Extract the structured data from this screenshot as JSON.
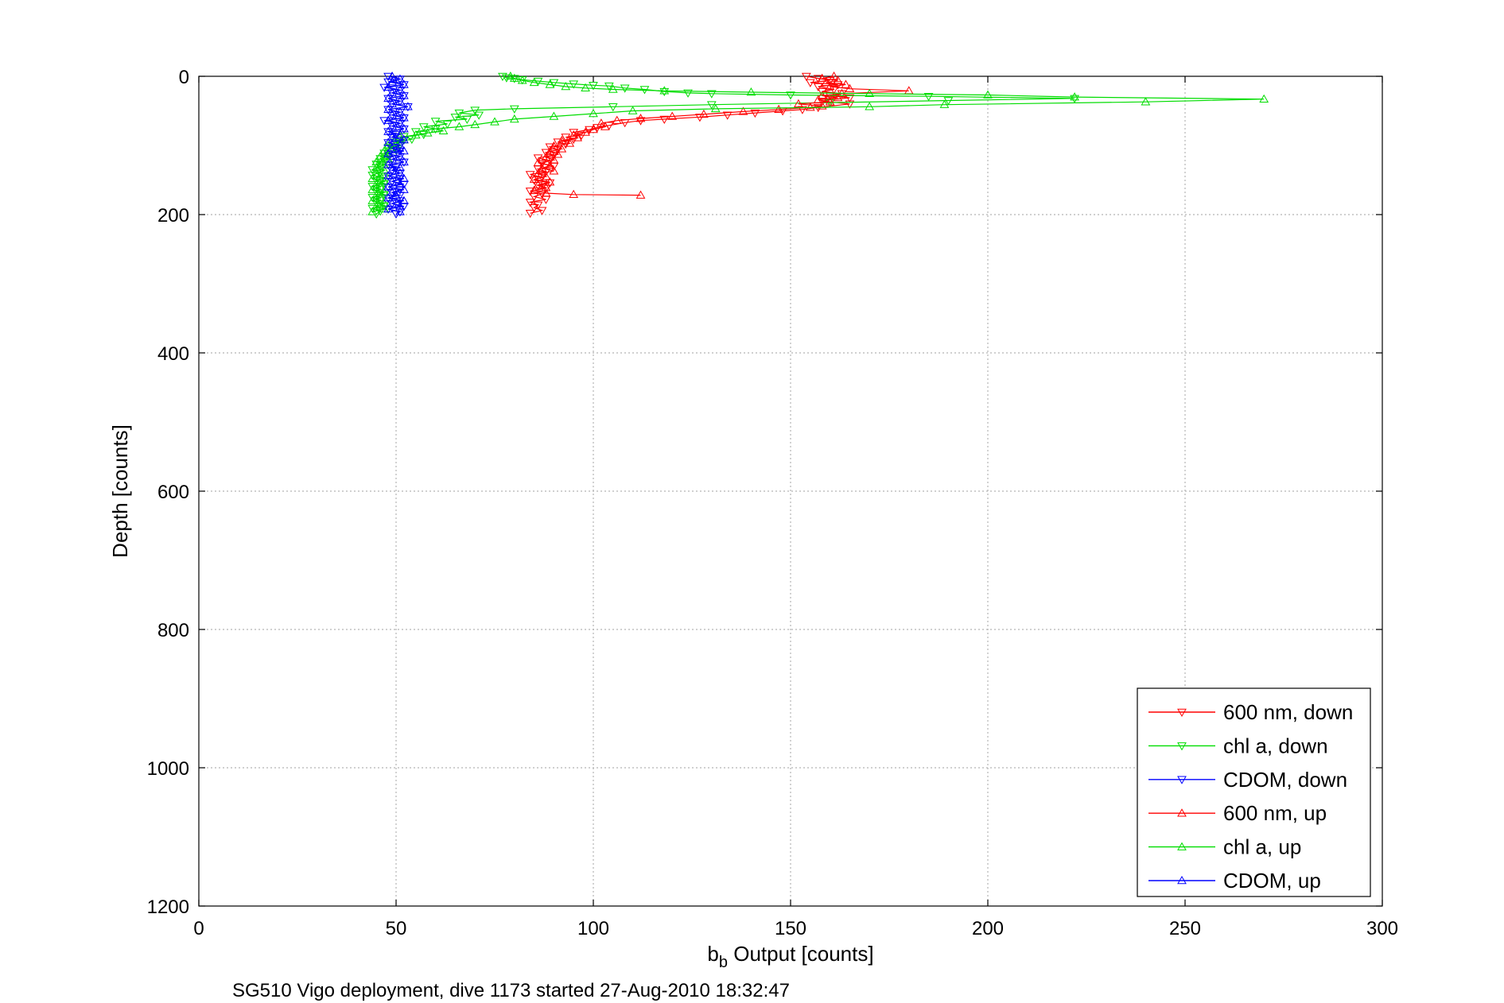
{
  "chart_data": {
    "type": "line",
    "xlabel_base": "b",
    "xlabel_sub": "b",
    "xlabel_rest": " Output [counts]",
    "ylabel": "Depth [counts]",
    "footer": "SG510 Vigo deployment, dive 1173 started 27-Aug-2010 18:32:47",
    "xlim": [
      0,
      300
    ],
    "ylim": [
      0,
      1200
    ],
    "y_reversed": true,
    "grid": true,
    "xticks": [
      "0",
      "50",
      "100",
      "150",
      "200",
      "250",
      "300"
    ],
    "yticks": [
      "0",
      "200",
      "400",
      "600",
      "800",
      "1000",
      "1200"
    ],
    "legend_position": "bottom-right",
    "series": [
      {
        "name": "600 nm, down",
        "color": "#ff0000",
        "marker": "triangle-down",
        "points": [
          [
            154,
            0
          ],
          [
            157,
            3
          ],
          [
            160,
            6
          ],
          [
            155,
            9
          ],
          [
            162,
            12
          ],
          [
            157,
            15
          ],
          [
            161,
            19
          ],
          [
            158,
            22
          ],
          [
            163,
            25
          ],
          [
            160,
            28
          ],
          [
            165,
            31
          ],
          [
            160,
            34
          ],
          [
            158,
            36
          ],
          [
            165,
            40
          ],
          [
            157,
            45
          ],
          [
            153,
            48
          ],
          [
            148,
            50
          ],
          [
            141,
            53
          ],
          [
            134,
            56
          ],
          [
            127,
            59
          ],
          [
            118,
            62
          ],
          [
            112,
            64
          ],
          [
            108,
            67
          ],
          [
            104,
            71
          ],
          [
            101,
            74
          ],
          [
            99,
            77
          ],
          [
            95,
            81
          ],
          [
            97,
            85
          ],
          [
            93,
            88
          ],
          [
            95,
            91
          ],
          [
            91,
            95
          ],
          [
            93,
            98
          ],
          [
            89,
            102
          ],
          [
            91,
            106
          ],
          [
            88,
            110
          ],
          [
            90,
            114
          ],
          [
            86,
            118
          ],
          [
            89,
            122
          ],
          [
            87,
            126
          ],
          [
            90,
            130
          ],
          [
            86,
            134
          ],
          [
            88,
            138
          ],
          [
            84,
            142
          ],
          [
            87,
            146
          ],
          [
            85,
            150
          ],
          [
            89,
            154
          ],
          [
            86,
            158
          ],
          [
            88,
            162
          ],
          [
            84,
            166
          ],
          [
            87,
            170
          ],
          [
            85,
            174
          ],
          [
            88,
            178
          ],
          [
            84,
            182
          ],
          [
            86,
            186
          ],
          [
            85,
            190
          ],
          [
            87,
            194
          ],
          [
            84,
            198
          ]
        ]
      },
      {
        "name": "chl a, down",
        "color": "#00dd00",
        "marker": "triangle-down",
        "points": [
          [
            77,
            0
          ],
          [
            78,
            2
          ],
          [
            80,
            3
          ],
          [
            82,
            5
          ],
          [
            86,
            7
          ],
          [
            90,
            9
          ],
          [
            95,
            11
          ],
          [
            100,
            13
          ],
          [
            104,
            14
          ],
          [
            108,
            17
          ],
          [
            113,
            19
          ],
          [
            118,
            22
          ],
          [
            124,
            24
          ],
          [
            130,
            25
          ],
          [
            150,
            27
          ],
          [
            185,
            29
          ],
          [
            222,
            32
          ],
          [
            190,
            35
          ],
          [
            160,
            38
          ],
          [
            130,
            41
          ],
          [
            105,
            44
          ],
          [
            80,
            47
          ],
          [
            70,
            49
          ],
          [
            66,
            53
          ],
          [
            71,
            56
          ],
          [
            65,
            59
          ],
          [
            68,
            62
          ],
          [
            60,
            65
          ],
          [
            63,
            69
          ],
          [
            57,
            73
          ],
          [
            60,
            76
          ],
          [
            55,
            80
          ],
          [
            57,
            84
          ],
          [
            52,
            87
          ],
          [
            54,
            91
          ],
          [
            50,
            95
          ],
          [
            51,
            99
          ],
          [
            48,
            103
          ],
          [
            50,
            107
          ],
          [
            47,
            111
          ],
          [
            48,
            115
          ],
          [
            46,
            119
          ],
          [
            47,
            123
          ],
          [
            45,
            127
          ],
          [
            46,
            131
          ],
          [
            44,
            135
          ],
          [
            46,
            139
          ],
          [
            44,
            143
          ],
          [
            47,
            147
          ],
          [
            45,
            151
          ],
          [
            47,
            155
          ],
          [
            44,
            159
          ],
          [
            46,
            163
          ],
          [
            45,
            167
          ],
          [
            47,
            171
          ],
          [
            44,
            175
          ],
          [
            46,
            179
          ],
          [
            45,
            183
          ],
          [
            47,
            187
          ],
          [
            44,
            191
          ],
          [
            46,
            195
          ],
          [
            45,
            199
          ]
        ]
      },
      {
        "name": "CDOM, down",
        "color": "#0000ff",
        "marker": "triangle-down",
        "points": [
          [
            48,
            0
          ],
          [
            51,
            4
          ],
          [
            48,
            8
          ],
          [
            52,
            12
          ],
          [
            47,
            16
          ],
          [
            51,
            20
          ],
          [
            49,
            24
          ],
          [
            52,
            28
          ],
          [
            48,
            32
          ],
          [
            51,
            36
          ],
          [
            49,
            40
          ],
          [
            53,
            44
          ],
          [
            48,
            48
          ],
          [
            51,
            52
          ],
          [
            49,
            56
          ],
          [
            52,
            60
          ],
          [
            47,
            64
          ],
          [
            51,
            68
          ],
          [
            49,
            72
          ],
          [
            52,
            76
          ],
          [
            48,
            80
          ],
          [
            50,
            84
          ],
          [
            49,
            88
          ],
          [
            52,
            92
          ],
          [
            48,
            96
          ],
          [
            51,
            100
          ],
          [
            49,
            104
          ],
          [
            51,
            108
          ],
          [
            48,
            112
          ],
          [
            51,
            116
          ],
          [
            49,
            120
          ],
          [
            52,
            124
          ],
          [
            48,
            128
          ],
          [
            50,
            132
          ],
          [
            49,
            136
          ],
          [
            51,
            140
          ],
          [
            48,
            144
          ],
          [
            51,
            148
          ],
          [
            49,
            152
          ],
          [
            52,
            156
          ],
          [
            48,
            160
          ],
          [
            51,
            164
          ],
          [
            49,
            168
          ],
          [
            51,
            172
          ],
          [
            48,
            176
          ],
          [
            51,
            180
          ],
          [
            49,
            184
          ],
          [
            52,
            188
          ],
          [
            48,
            192
          ],
          [
            51,
            196
          ],
          [
            50,
            199
          ]
        ]
      },
      {
        "name": "600 nm, up",
        "color": "#ff0000",
        "marker": "triangle-up",
        "points": [
          [
            112,
            172
          ],
          [
            95,
            171
          ],
          [
            88,
            169
          ],
          [
            85,
            165
          ],
          [
            88,
            161
          ],
          [
            86,
            157
          ],
          [
            89,
            153
          ],
          [
            85,
            149
          ],
          [
            88,
            145
          ],
          [
            86,
            141
          ],
          [
            90,
            137
          ],
          [
            87,
            133
          ],
          [
            89,
            129
          ],
          [
            86,
            125
          ],
          [
            90,
            121
          ],
          [
            88,
            117
          ],
          [
            91,
            113
          ],
          [
            89,
            109
          ],
          [
            92,
            105
          ],
          [
            90,
            101
          ],
          [
            94,
            97
          ],
          [
            92,
            93
          ],
          [
            96,
            89
          ],
          [
            95,
            85
          ],
          [
            98,
            81
          ],
          [
            100,
            77
          ],
          [
            103,
            73
          ],
          [
            102,
            68
          ],
          [
            106,
            64
          ],
          [
            112,
            61
          ],
          [
            120,
            58
          ],
          [
            128,
            55
          ],
          [
            138,
            51
          ],
          [
            147,
            48
          ],
          [
            155,
            45
          ],
          [
            158,
            43
          ],
          [
            152,
            40
          ],
          [
            160,
            37
          ],
          [
            157,
            34
          ],
          [
            162,
            31
          ],
          [
            158,
            28
          ],
          [
            163,
            25
          ],
          [
            180,
            21
          ],
          [
            165,
            18
          ],
          [
            160,
            15
          ],
          [
            164,
            12
          ],
          [
            159,
            9
          ],
          [
            162,
            6
          ],
          [
            158,
            3
          ],
          [
            161,
            0
          ]
        ]
      },
      {
        "name": "chl a, up",
        "color": "#00dd00",
        "marker": "triangle-up",
        "points": [
          [
            44,
            196
          ],
          [
            47,
            192
          ],
          [
            45,
            188
          ],
          [
            47,
            184
          ],
          [
            44,
            180
          ],
          [
            46,
            176
          ],
          [
            45,
            172
          ],
          [
            47,
            168
          ],
          [
            44,
            164
          ],
          [
            46,
            160
          ],
          [
            45,
            156
          ],
          [
            47,
            152
          ],
          [
            44,
            148
          ],
          [
            46,
            144
          ],
          [
            45,
            140
          ],
          [
            47,
            136
          ],
          [
            45,
            132
          ],
          [
            47,
            128
          ],
          [
            45,
            124
          ],
          [
            48,
            120
          ],
          [
            46,
            116
          ],
          [
            48,
            112
          ],
          [
            47,
            108
          ],
          [
            49,
            104
          ],
          [
            48,
            100
          ],
          [
            50,
            96
          ],
          [
            52,
            92
          ],
          [
            51,
            88
          ],
          [
            55,
            85
          ],
          [
            58,
            82
          ],
          [
            62,
            79
          ],
          [
            60,
            76
          ],
          [
            66,
            73
          ],
          [
            70,
            70
          ],
          [
            75,
            66
          ],
          [
            80,
            62
          ],
          [
            90,
            58
          ],
          [
            100,
            54
          ],
          [
            110,
            50
          ],
          [
            131,
            47
          ],
          [
            170,
            44
          ],
          [
            189,
            41
          ],
          [
            240,
            37
          ],
          [
            270,
            33
          ],
          [
            222,
            30
          ],
          [
            200,
            27
          ],
          [
            170,
            25
          ],
          [
            140,
            23
          ],
          [
            118,
            21
          ],
          [
            105,
            19
          ],
          [
            98,
            17
          ],
          [
            93,
            15
          ],
          [
            89,
            12
          ],
          [
            85,
            9
          ],
          [
            82,
            6
          ],
          [
            80,
            3
          ],
          [
            79,
            0
          ]
        ]
      },
      {
        "name": "CDOM, up",
        "color": "#0000ff",
        "marker": "triangle-up",
        "points": [
          [
            51,
            196
          ],
          [
            48,
            192
          ],
          [
            51,
            188
          ],
          [
            49,
            184
          ],
          [
            52,
            180
          ],
          [
            48,
            176
          ],
          [
            50,
            172
          ],
          [
            49,
            168
          ],
          [
            52,
            164
          ],
          [
            48,
            160
          ],
          [
            51,
            156
          ],
          [
            49,
            152
          ],
          [
            52,
            148
          ],
          [
            48,
            144
          ],
          [
            51,
            140
          ],
          [
            49,
            136
          ],
          [
            51,
            132
          ],
          [
            48,
            128
          ],
          [
            52,
            124
          ],
          [
            49,
            120
          ],
          [
            51,
            116
          ],
          [
            48,
            112
          ],
          [
            52,
            108
          ],
          [
            49,
            104
          ],
          [
            51,
            100
          ],
          [
            48,
            96
          ],
          [
            52,
            92
          ],
          [
            49,
            88
          ],
          [
            51,
            84
          ],
          [
            48,
            80
          ],
          [
            52,
            76
          ],
          [
            49,
            72
          ],
          [
            51,
            68
          ],
          [
            48,
            64
          ],
          [
            52,
            60
          ],
          [
            49,
            56
          ],
          [
            51,
            52
          ],
          [
            48,
            48
          ],
          [
            53,
            44
          ],
          [
            49,
            40
          ],
          [
            51,
            36
          ],
          [
            48,
            32
          ],
          [
            52,
            28
          ],
          [
            49,
            24
          ],
          [
            51,
            20
          ],
          [
            48,
            16
          ],
          [
            52,
            12
          ],
          [
            49,
            8
          ],
          [
            51,
            4
          ],
          [
            49,
            0
          ]
        ]
      }
    ]
  }
}
